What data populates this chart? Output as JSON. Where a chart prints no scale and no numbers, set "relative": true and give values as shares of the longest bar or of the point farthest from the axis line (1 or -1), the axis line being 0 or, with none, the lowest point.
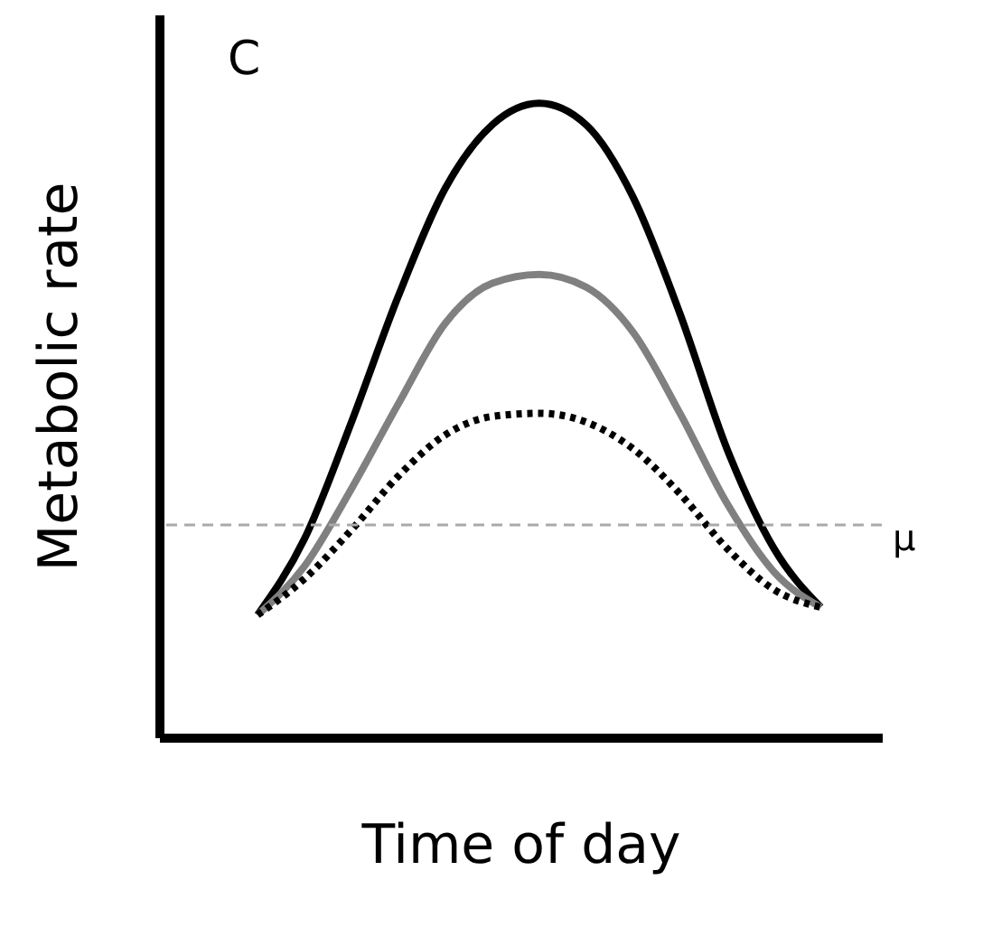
{
  "chart_data": {
    "type": "line",
    "relative": true,
    "xlabel": "Time of day",
    "ylabel": "Metabolic rate",
    "annotations": [
      "C"
    ],
    "categories": [
      null,
      null,
      null,
      null,
      null,
      null,
      null,
      null,
      null,
      null,
      null,
      null,
      null
    ],
    "series": [
      {
        "color": "#000000",
        "line_style": "solid",
        "values": [
          0.193,
          0.313,
          0.497,
          0.696,
          0.866,
          0.966,
          1,
          0.966,
          0.852,
          0.668,
          0.455,
          0.298,
          0.205
        ]
      },
      {
        "color": "#808080",
        "line_style": "solid",
        "values": [
          0.193,
          0.27,
          0.392,
          0.526,
          0.653,
          0.716,
          0.73,
          0.71,
          0.639,
          0.511,
          0.369,
          0.261,
          0.205
        ]
      },
      {
        "color": "#000000",
        "line_style": "dotted",
        "values": [
          0.193,
          0.25,
          0.327,
          0.412,
          0.477,
          0.506,
          0.511,
          0.497,
          0.455,
          0.384,
          0.298,
          0.233,
          0.205
        ]
      }
    ],
    "ref_lines": [
      {
        "axis": "y",
        "value": 0.335,
        "label": "μ",
        "color": "#aaaaaa",
        "line_style": "dashed"
      }
    ],
    "grid": false,
    "tick_labels": false,
    "marker": "none"
  }
}
